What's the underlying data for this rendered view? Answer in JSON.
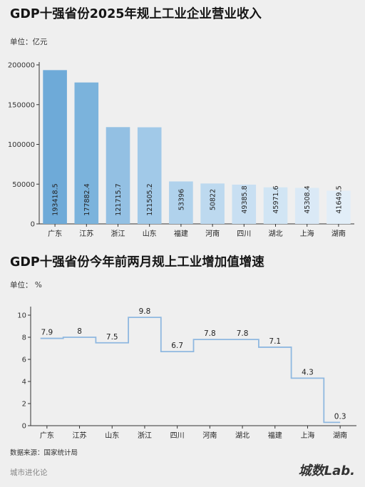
{
  "chart_data": [
    {
      "type": "bar",
      "title": "GDP十强省份2025年规上工业企业营业收入",
      "unit_label": "单位：亿元",
      "categories": [
        "广东",
        "江苏",
        "浙江",
        "山东",
        "福建",
        "河南",
        "四川",
        "湖北",
        "上海",
        "湖南"
      ],
      "values": [
        193418.5,
        177882.4,
        121715.7,
        121505.2,
        53396,
        50822,
        49385.8,
        45971.6,
        45308.4,
        41649.5
      ],
      "value_labels": [
        "193418.5",
        "177882.4",
        "121715.7",
        "121505.2",
        "53396",
        "50822",
        "49385.8",
        "45971.6",
        "45308.4",
        "41649.5"
      ],
      "ylim": [
        0,
        200000
      ],
      "yticks": [
        0,
        50000,
        100000,
        150000,
        200000
      ],
      "grid": false,
      "colors": [
        "#6eaad8",
        "#7bb3dc",
        "#93c0e3",
        "#a1c9e8",
        "#b0d2ec",
        "#bdd9ef",
        "#c8dff2",
        "#d1e5f4",
        "#dae9f6",
        "#e2eef8"
      ]
    },
    {
      "type": "line",
      "style": "step",
      "title": "GDP十强省份今年前两月规上工业增加值增速",
      "unit_label": "单位： %",
      "categories": [
        "广东",
        "江苏",
        "山东",
        "浙江",
        "四川",
        "河南",
        "湖北",
        "福建",
        "上海",
        "湖南"
      ],
      "values": [
        7.9,
        8,
        7.5,
        9.8,
        6.7,
        7.8,
        7.8,
        7.1,
        4.3,
        0.3
      ],
      "value_labels": [
        "7.9",
        "8",
        "7.5",
        "9.8",
        "6.7",
        "7.8",
        "7.8",
        "7.1",
        "4.3",
        "0.3"
      ],
      "ylim": [
        0,
        10
      ],
      "yticks": [
        0,
        2,
        4,
        6,
        8,
        10
      ],
      "grid": false,
      "line_color": "#8fb8e0"
    }
  ],
  "source": "数据来源：国家统计局",
  "footer": {
    "left": "城市进化论",
    "brand_main": "城数",
    "brand_suffix": "Lab."
  }
}
